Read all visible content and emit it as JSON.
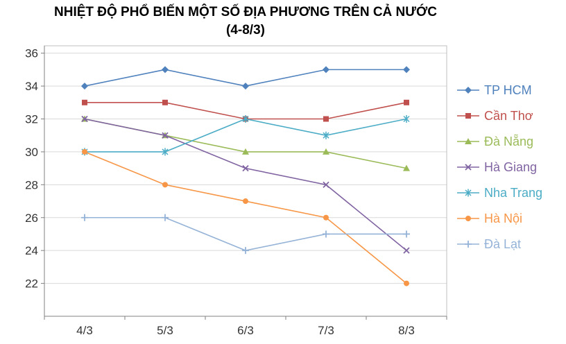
{
  "title": {
    "line1": "NHIỆT ĐỘ PHỔ BIẾN MỘT SỐ ĐỊA PHƯƠNG TRÊN CẢ NƯỚC",
    "line2": "(4-8/3)"
  },
  "chart_data": {
    "type": "line",
    "title": "NHIỆT ĐỘ PHỔ BIẾN MỘT SỐ ĐỊA PHƯƠNG TRÊN CẢ NƯỚC (4-8/3)",
    "categories": [
      "4/3",
      "5/3",
      "6/3",
      "7/3",
      "8/3"
    ],
    "series": [
      {
        "name": "TP HCM",
        "color": "#4F81BD",
        "marker": "diamond",
        "values": [
          34,
          35,
          34,
          35,
          35
        ]
      },
      {
        "name": "Cần Thơ",
        "color": "#C0504D",
        "marker": "square",
        "values": [
          33,
          33,
          32,
          32,
          33
        ]
      },
      {
        "name": "Đà Nẵng",
        "color": "#9BBB59",
        "marker": "triangle",
        "values": [
          32,
          31,
          30,
          30,
          29
        ]
      },
      {
        "name": "Hà Giang",
        "color": "#8064A2",
        "marker": "x",
        "values": [
          32,
          31,
          29,
          28,
          24
        ]
      },
      {
        "name": "Nha Trang",
        "color": "#4BACC6",
        "marker": "asterisk",
        "values": [
          30,
          30,
          32,
          31,
          32
        ]
      },
      {
        "name": "Hà Nội",
        "color": "#F79646",
        "marker": "circle",
        "values": [
          30,
          28,
          27,
          26,
          22
        ]
      },
      {
        "name": "Đà Lạt",
        "color": "#95B3D7",
        "marker": "plus",
        "values": [
          26,
          26,
          24,
          25,
          25
        ]
      }
    ],
    "xlabel": "",
    "ylabel": "",
    "ylim": [
      20,
      36.45
    ],
    "yticks": [
      22,
      24,
      26,
      28,
      30,
      32,
      34,
      36
    ],
    "grid": true,
    "legend_position": "right",
    "colors": {
      "gridline": "#D9D9D9",
      "axis": "#808080",
      "plot_border": "#BFBFBF",
      "tick_text": "#333333"
    }
  }
}
